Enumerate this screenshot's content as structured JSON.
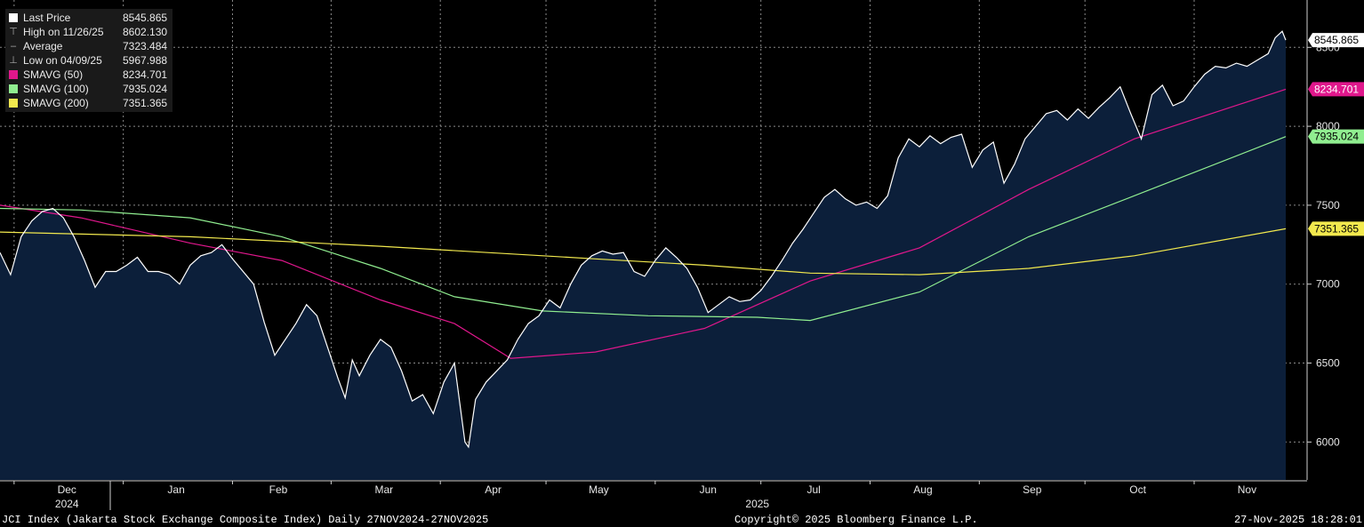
{
  "legend": {
    "items": [
      {
        "label": "Last Price",
        "value": "8545.865",
        "icon": "square",
        "color": "#ffffff"
      },
      {
        "label": "High on 11/26/25",
        "value": "8602.130",
        "icon": "high-marker",
        "color": "#aaaaaa"
      },
      {
        "label": "Average",
        "value": "7323.484",
        "icon": "average-marker",
        "color": "#aaaaaa"
      },
      {
        "label": "Low on 04/09/25",
        "value": "5967.988",
        "icon": "low-marker",
        "color": "#aaaaaa"
      },
      {
        "label": "SMAVG (50)",
        "value": "8234.701",
        "icon": "square",
        "color": "#e0178c"
      },
      {
        "label": "SMAVG (100)",
        "value": "7935.024",
        "icon": "square",
        "color": "#90ee90"
      },
      {
        "label": "SMAVG (200)",
        "value": "7351.365",
        "icon": "square",
        "color": "#f2e94e"
      }
    ]
  },
  "footer": {
    "title": "JCI Index (Jakarta Stock Exchange Composite Index) Daily 27NOV2024-27NOV2025",
    "copyright": "Copyright© 2025 Bloomberg Finance L.P.",
    "timestamp": "27-Nov-2025 18:28:01"
  },
  "chart_data": {
    "type": "area",
    "ylim": [
      5760,
      8800
    ],
    "y_ticks": [
      6000,
      6500,
      7000,
      7500,
      8000,
      8500
    ],
    "y_tick_labels": [
      "6000",
      "6500",
      "7000",
      "7500",
      "8000",
      "8500"
    ],
    "x_range": [
      "2024-11-27",
      "2025-11-27"
    ],
    "month_labels": [
      {
        "label": "Dec",
        "x": "2024-12-16"
      },
      {
        "label": "Jan",
        "x": "2025-01-16"
      },
      {
        "label": "Feb",
        "x": "2025-02-14"
      },
      {
        "label": "Mar",
        "x": "2025-03-16"
      },
      {
        "label": "Apr",
        "x": "2025-04-16"
      },
      {
        "label": "May",
        "x": "2025-05-16"
      },
      {
        "label": "Jun",
        "x": "2025-06-16"
      },
      {
        "label": "Jul",
        "x": "2025-07-16"
      },
      {
        "label": "Aug",
        "x": "2025-08-16"
      },
      {
        "label": "Sep",
        "x": "2025-09-16"
      },
      {
        "label": "Oct",
        "x": "2025-10-16"
      },
      {
        "label": "Nov",
        "x": "2025-11-16"
      }
    ],
    "year_labels": [
      {
        "label": "2024",
        "x": "2024-12-16"
      },
      {
        "label": "2025",
        "x": "2025-06-30"
      }
    ],
    "grid": true,
    "series": [
      {
        "name": "Last Price",
        "color": "#ffffff",
        "fill": "#0c1f3a",
        "points": [
          [
            "2024-11-27",
            7200
          ],
          [
            "2024-11-30",
            7060
          ],
          [
            "2024-12-03",
            7300
          ],
          [
            "2024-12-06",
            7400
          ],
          [
            "2024-12-09",
            7460
          ],
          [
            "2024-12-12",
            7480
          ],
          [
            "2024-12-15",
            7420
          ],
          [
            "2024-12-18",
            7300
          ],
          [
            "2024-12-21",
            7150
          ],
          [
            "2024-12-24",
            6980
          ],
          [
            "2024-12-27",
            7080
          ],
          [
            "2024-12-30",
            7080
          ],
          [
            "2025-01-02",
            7120
          ],
          [
            "2025-01-05",
            7170
          ],
          [
            "2025-01-08",
            7080
          ],
          [
            "2025-01-11",
            7080
          ],
          [
            "2025-01-14",
            7060
          ],
          [
            "2025-01-17",
            7000
          ],
          [
            "2025-01-20",
            7120
          ],
          [
            "2025-01-23",
            7180
          ],
          [
            "2025-01-26",
            7200
          ],
          [
            "2025-01-29",
            7250
          ],
          [
            "2025-02-01",
            7160
          ],
          [
            "2025-02-04",
            7080
          ],
          [
            "2025-02-07",
            7000
          ],
          [
            "2025-02-10",
            6760
          ],
          [
            "2025-02-13",
            6550
          ],
          [
            "2025-02-16",
            6650
          ],
          [
            "2025-02-19",
            6750
          ],
          [
            "2025-02-22",
            6870
          ],
          [
            "2025-02-25",
            6800
          ],
          [
            "2025-02-28",
            6600
          ],
          [
            "2025-03-03",
            6400
          ],
          [
            "2025-03-05",
            6280
          ],
          [
            "2025-03-07",
            6520
          ],
          [
            "2025-03-09",
            6420
          ],
          [
            "2025-03-12",
            6550
          ],
          [
            "2025-03-15",
            6650
          ],
          [
            "2025-03-18",
            6600
          ],
          [
            "2025-03-21",
            6450
          ],
          [
            "2025-03-24",
            6260
          ],
          [
            "2025-03-27",
            6300
          ],
          [
            "2025-03-30",
            6180
          ],
          [
            "2025-04-02",
            6380
          ],
          [
            "2025-04-05",
            6500
          ],
          [
            "2025-04-08",
            6000
          ],
          [
            "2025-04-09",
            5968
          ],
          [
            "2025-04-11",
            6270
          ],
          [
            "2025-04-14",
            6380
          ],
          [
            "2025-04-17",
            6450
          ],
          [
            "2025-04-20",
            6520
          ],
          [
            "2025-04-23",
            6650
          ],
          [
            "2025-04-26",
            6750
          ],
          [
            "2025-04-29",
            6800
          ],
          [
            "2025-05-02",
            6900
          ],
          [
            "2025-05-05",
            6850
          ],
          [
            "2025-05-08",
            7000
          ],
          [
            "2025-05-11",
            7120
          ],
          [
            "2025-05-14",
            7180
          ],
          [
            "2025-05-17",
            7210
          ],
          [
            "2025-05-20",
            7190
          ],
          [
            "2025-05-23",
            7200
          ],
          [
            "2025-05-26",
            7080
          ],
          [
            "2025-05-29",
            7050
          ],
          [
            "2025-06-01",
            7150
          ],
          [
            "2025-06-04",
            7230
          ],
          [
            "2025-06-07",
            7170
          ],
          [
            "2025-06-10",
            7100
          ],
          [
            "2025-06-13",
            6980
          ],
          [
            "2025-06-16",
            6820
          ],
          [
            "2025-06-19",
            6870
          ],
          [
            "2025-06-22",
            6920
          ],
          [
            "2025-06-25",
            6890
          ],
          [
            "2025-06-28",
            6900
          ],
          [
            "2025-07-01",
            6960
          ],
          [
            "2025-07-04",
            7050
          ],
          [
            "2025-07-07",
            7150
          ],
          [
            "2025-07-10",
            7260
          ],
          [
            "2025-07-13",
            7350
          ],
          [
            "2025-07-16",
            7450
          ],
          [
            "2025-07-19",
            7550
          ],
          [
            "2025-07-22",
            7600
          ],
          [
            "2025-07-25",
            7540
          ],
          [
            "2025-07-28",
            7500
          ],
          [
            "2025-07-31",
            7520
          ],
          [
            "2025-08-03",
            7480
          ],
          [
            "2025-08-06",
            7560
          ],
          [
            "2025-08-09",
            7800
          ],
          [
            "2025-08-12",
            7920
          ],
          [
            "2025-08-15",
            7870
          ],
          [
            "2025-08-18",
            7940
          ],
          [
            "2025-08-21",
            7890
          ],
          [
            "2025-08-24",
            7930
          ],
          [
            "2025-08-27",
            7950
          ],
          [
            "2025-08-30",
            7740
          ],
          [
            "2025-09-02",
            7850
          ],
          [
            "2025-09-05",
            7900
          ],
          [
            "2025-09-08",
            7640
          ],
          [
            "2025-09-11",
            7760
          ],
          [
            "2025-09-14",
            7920
          ],
          [
            "2025-09-17",
            8000
          ],
          [
            "2025-09-20",
            8080
          ],
          [
            "2025-09-23",
            8100
          ],
          [
            "2025-09-26",
            8040
          ],
          [
            "2025-09-29",
            8110
          ],
          [
            "2025-10-02",
            8050
          ],
          [
            "2025-10-05",
            8120
          ],
          [
            "2025-10-08",
            8180
          ],
          [
            "2025-10-11",
            8250
          ],
          [
            "2025-10-14",
            8080
          ],
          [
            "2025-10-17",
            7920
          ],
          [
            "2025-10-20",
            8200
          ],
          [
            "2025-10-23",
            8260
          ],
          [
            "2025-10-26",
            8130
          ],
          [
            "2025-10-29",
            8160
          ],
          [
            "2025-11-01",
            8250
          ],
          [
            "2025-11-04",
            8330
          ],
          [
            "2025-11-07",
            8380
          ],
          [
            "2025-11-10",
            8370
          ],
          [
            "2025-11-13",
            8400
          ],
          [
            "2025-11-16",
            8380
          ],
          [
            "2025-11-19",
            8420
          ],
          [
            "2025-11-22",
            8460
          ],
          [
            "2025-11-24",
            8560
          ],
          [
            "2025-11-26",
            8602
          ],
          [
            "2025-11-27",
            8546
          ]
        ]
      },
      {
        "name": "SMAVG (50)",
        "color": "#e0178c",
        "points": [
          [
            "2024-11-27",
            7500
          ],
          [
            "2024-12-20",
            7420
          ],
          [
            "2025-01-20",
            7260
          ],
          [
            "2025-02-15",
            7150
          ],
          [
            "2025-03-15",
            6900
          ],
          [
            "2025-04-05",
            6750
          ],
          [
            "2025-04-21",
            6530
          ],
          [
            "2025-05-15",
            6570
          ],
          [
            "2025-06-15",
            6720
          ],
          [
            "2025-07-15",
            7020
          ],
          [
            "2025-08-15",
            7230
          ],
          [
            "2025-09-15",
            7600
          ],
          [
            "2025-10-15",
            7920
          ],
          [
            "2025-11-27",
            8235
          ]
        ]
      },
      {
        "name": "SMAVG (100)",
        "color": "#90ee90",
        "points": [
          [
            "2024-11-27",
            7480
          ],
          [
            "2024-12-20",
            7470
          ],
          [
            "2025-01-20",
            7420
          ],
          [
            "2025-02-15",
            7300
          ],
          [
            "2025-03-15",
            7100
          ],
          [
            "2025-04-05",
            6920
          ],
          [
            "2025-04-30",
            6830
          ],
          [
            "2025-05-30",
            6800
          ],
          [
            "2025-06-30",
            6790
          ],
          [
            "2025-07-15",
            6770
          ],
          [
            "2025-08-15",
            6950
          ],
          [
            "2025-09-15",
            7300
          ],
          [
            "2025-10-15",
            7560
          ],
          [
            "2025-11-27",
            7935
          ]
        ]
      },
      {
        "name": "SMAVG (200)",
        "color": "#f2e94e",
        "points": [
          [
            "2024-11-27",
            7330
          ],
          [
            "2025-01-20",
            7300
          ],
          [
            "2025-03-15",
            7240
          ],
          [
            "2025-05-15",
            7160
          ],
          [
            "2025-06-15",
            7120
          ],
          [
            "2025-07-15",
            7070
          ],
          [
            "2025-08-15",
            7060
          ],
          [
            "2025-09-15",
            7100
          ],
          [
            "2025-10-15",
            7180
          ],
          [
            "2025-11-27",
            7351
          ]
        ]
      }
    ],
    "tags": [
      {
        "value": 8545.865,
        "label": "8545.865",
        "bg": "#ffffff",
        "fg": "#000000"
      },
      {
        "value": 8234.701,
        "label": "8234.701",
        "bg": "#e0178c",
        "fg": "#ffffff"
      },
      {
        "value": 7935.024,
        "label": "7935.024",
        "bg": "#90ee90",
        "fg": "#000000"
      },
      {
        "value": 7351.365,
        "label": "7351.365",
        "bg": "#f2e94e",
        "fg": "#000000"
      }
    ]
  }
}
